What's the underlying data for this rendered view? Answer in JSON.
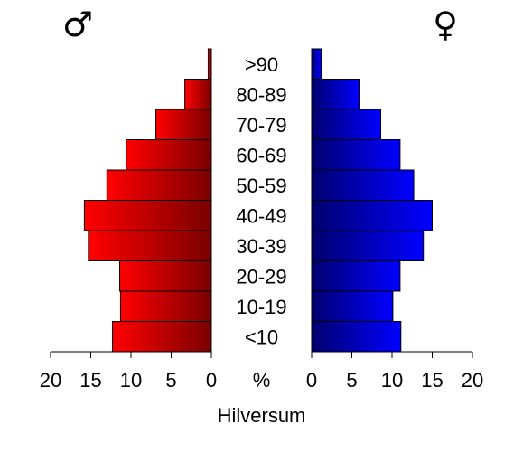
{
  "chart_data": {
    "type": "bar",
    "orientation": "horizontal-population-pyramid",
    "categories": [
      "<10",
      "10-19",
      "20-29",
      "30-39",
      "40-49",
      "50-59",
      "60-69",
      "70-79",
      "80-89",
      ">90"
    ],
    "series": [
      {
        "name": "♂",
        "values": [
          12.3,
          11.3,
          11.4,
          15.3,
          15.8,
          13.0,
          10.6,
          6.9,
          3.3,
          0.4
        ]
      },
      {
        "name": "♀",
        "values": [
          11.1,
          10.1,
          11.0,
          13.9,
          15.0,
          12.7,
          11.0,
          8.6,
          5.9,
          1.2
        ]
      }
    ],
    "xlim": [
      0,
      20
    ],
    "x_ticks": [
      "20",
      "15",
      "10",
      "5",
      "0",
      "0",
      "5",
      "10",
      "15",
      "20"
    ],
    "unit_label": "%",
    "xlabel": "Hilversum",
    "colors": {
      "male_light": "#ff0000",
      "male_dark": "#7a0000",
      "female_light": "#0000ff",
      "female_dark": "#00006e",
      "axis": "#000000"
    },
    "grid": false
  }
}
